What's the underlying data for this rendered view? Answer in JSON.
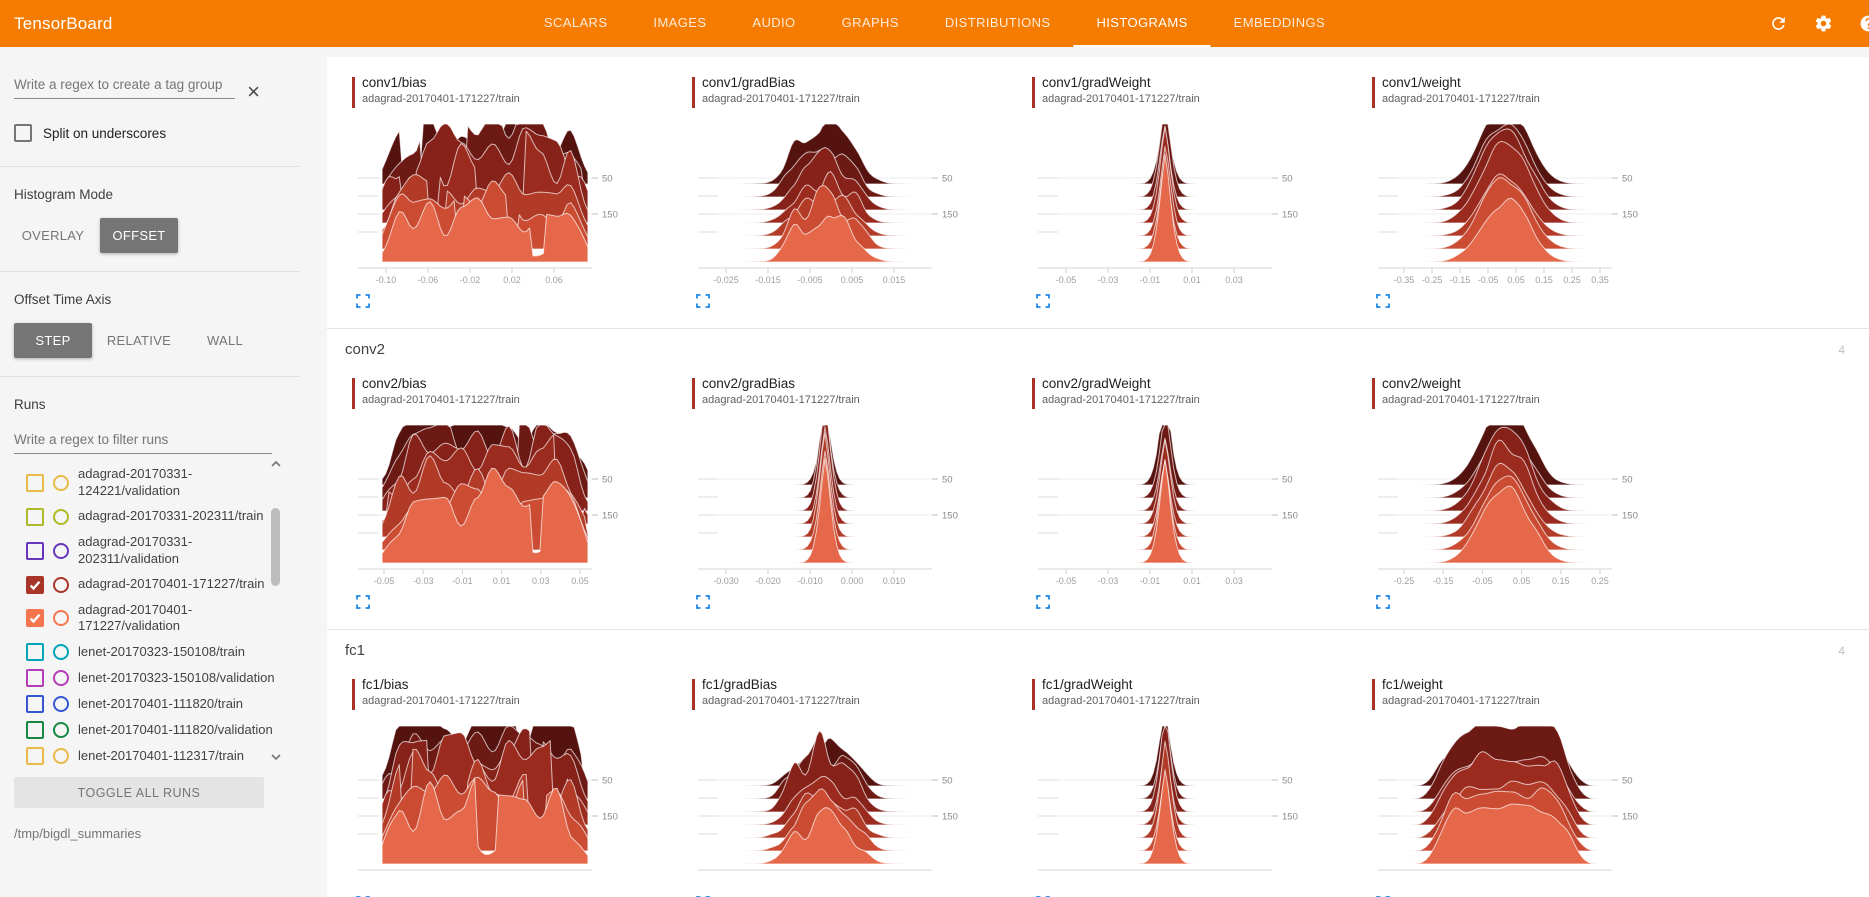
{
  "toolbar": {
    "title": "TensorBoard",
    "tabs": [
      {
        "label": "SCALARS",
        "active": false
      },
      {
        "label": "IMAGES",
        "active": false
      },
      {
        "label": "AUDIO",
        "active": false
      },
      {
        "label": "GRAPHS",
        "active": false
      },
      {
        "label": "DISTRIBUTIONS",
        "active": false
      },
      {
        "label": "HISTOGRAMS",
        "active": true
      },
      {
        "label": "EMBEDDINGS",
        "active": false
      }
    ],
    "icons": [
      "refresh-icon",
      "settings-icon",
      "help-icon"
    ],
    "accent_color": "#f57c00"
  },
  "sidebar": {
    "tag_filter": {
      "placeholder": "Write a regex to create a tag group",
      "clear_icon": "×"
    },
    "split_checkbox": {
      "label": "Split on underscores",
      "checked": false
    },
    "histogram_mode": {
      "label": "Histogram Mode",
      "options": [
        {
          "label": "OVERLAY",
          "selected": false
        },
        {
          "label": "OFFSET",
          "selected": true
        }
      ]
    },
    "offset_time_axis": {
      "label": "Offset Time Axis",
      "options": [
        {
          "label": "STEP",
          "selected": true
        },
        {
          "label": "RELATIVE",
          "selected": false
        },
        {
          "label": "WALL",
          "selected": false
        }
      ]
    },
    "runs": {
      "label": "Runs",
      "filter_placeholder": "Write a regex to filter runs",
      "items": [
        {
          "label": "adagrad-20170331-124221/validation",
          "color": "#e9b949",
          "checked": false
        },
        {
          "label": "adagrad-20170331-202311/train",
          "color": "#aeb927",
          "checked": false
        },
        {
          "label": "adagrad-20170331-202311/validation",
          "color": "#6637bd",
          "checked": false
        },
        {
          "label": "adagrad-20170401-171227/train",
          "color": "#a93528",
          "checked": true
        },
        {
          "label": "adagrad-20170401-171227/validation",
          "color": "#f4764e",
          "checked": true
        },
        {
          "label": "lenet-20170323-150108/train",
          "color": "#00a5b8",
          "checked": false
        },
        {
          "label": "lenet-20170323-150108/validation",
          "color": "#b43dba",
          "checked": false
        },
        {
          "label": "lenet-20170401-111820/train",
          "color": "#3457d1",
          "checked": false
        },
        {
          "label": "lenet-20170401-111820/validation",
          "color": "#188942",
          "checked": false
        },
        {
          "label": "lenet-20170401-112317/train",
          "color": "#e9b949",
          "checked": false
        }
      ],
      "toggle_all_label": "TOGGLE ALL RUNS",
      "log_dir": "/tmp/bigdl_summaries"
    }
  },
  "main": {
    "groups": [
      {
        "name": "",
        "count": "",
        "cards": [
          {
            "tag": "conv1/bias",
            "run": "adagrad-20170401-171227/train",
            "shape": "noisy",
            "xticks": [
              "-0.10",
              "-0.06",
              "-0.02",
              "0.02",
              "0.06"
            ],
            "yticks": [
              "50",
              "150"
            ]
          },
          {
            "tag": "conv1/gradBias",
            "run": "adagrad-20170401-171227/train",
            "shape": "peak",
            "xticks": [
              "-0.025",
              "-0.015",
              "-0.005",
              "0.005",
              "0.015"
            ],
            "yticks": [
              "50",
              "150"
            ]
          },
          {
            "tag": "conv1/gradWeight",
            "run": "adagrad-20170401-171227/train",
            "shape": "spike",
            "xticks": [
              "-0.05",
              "-0.03",
              "-0.01",
              "0.01",
              "0.03"
            ],
            "yticks": [
              "50",
              "150"
            ]
          },
          {
            "tag": "conv1/weight",
            "run": "adagrad-20170401-171227/train",
            "shape": "bell",
            "xticks": [
              "-0.35",
              "-0.25",
              "-0.15",
              "-0.05",
              "0.05",
              "0.15",
              "0.25",
              "0.35"
            ],
            "yticks": [
              "50",
              "150"
            ]
          }
        ]
      },
      {
        "name": "conv2",
        "count": "4",
        "cards": [
          {
            "tag": "conv2/bias",
            "run": "adagrad-20170401-171227/train",
            "shape": "noisy",
            "xticks": [
              "-0.05",
              "-0.03",
              "-0.01",
              "0.01",
              "0.03",
              "0.05"
            ],
            "yticks": [
              "50",
              "150"
            ]
          },
          {
            "tag": "conv2/gradBias",
            "run": "adagrad-20170401-171227/train",
            "shape": "spike",
            "xticks": [
              "-0.030",
              "-0.020",
              "-0.010",
              "0.000",
              "0.010"
            ],
            "yticks": [
              "50",
              "150"
            ]
          },
          {
            "tag": "conv2/gradWeight",
            "run": "adagrad-20170401-171227/train",
            "shape": "spike",
            "xticks": [
              "-0.05",
              "-0.03",
              "-0.01",
              "0.01",
              "0.03"
            ],
            "yticks": [
              "50",
              "150"
            ]
          },
          {
            "tag": "conv2/weight",
            "run": "adagrad-20170401-171227/train",
            "shape": "bell",
            "xticks": [
              "-0.25",
              "-0.15",
              "-0.05",
              "0.05",
              "0.15",
              "0.25"
            ],
            "yticks": [
              "50",
              "150"
            ]
          }
        ]
      },
      {
        "name": "fc1",
        "count": "4",
        "cards": [
          {
            "tag": "fc1/bias",
            "run": "adagrad-20170401-171227/train",
            "shape": "noisy",
            "xticks": [],
            "yticks": [
              "50",
              "150"
            ]
          },
          {
            "tag": "fc1/gradBias",
            "run": "adagrad-20170401-171227/train",
            "shape": "peak",
            "xticks": [],
            "yticks": [
              "50",
              "150"
            ]
          },
          {
            "tag": "fc1/gradWeight",
            "run": "adagrad-20170401-171227/train",
            "shape": "spike",
            "xticks": [],
            "yticks": [
              "50",
              "150"
            ]
          },
          {
            "tag": "fc1/weight",
            "run": "adagrad-20170401-171227/train",
            "shape": "plateau",
            "xticks": [],
            "yticks": [
              "50",
              "150"
            ]
          }
        ]
      }
    ],
    "ridge_colors": [
      "#551310",
      "#6e1a14",
      "#87221a",
      "#9c2b1f",
      "#b23b28",
      "#cb4c33",
      "#e5684a"
    ],
    "card_accent_color": "#a93226",
    "expand_icon_color": "#1e88e5"
  }
}
